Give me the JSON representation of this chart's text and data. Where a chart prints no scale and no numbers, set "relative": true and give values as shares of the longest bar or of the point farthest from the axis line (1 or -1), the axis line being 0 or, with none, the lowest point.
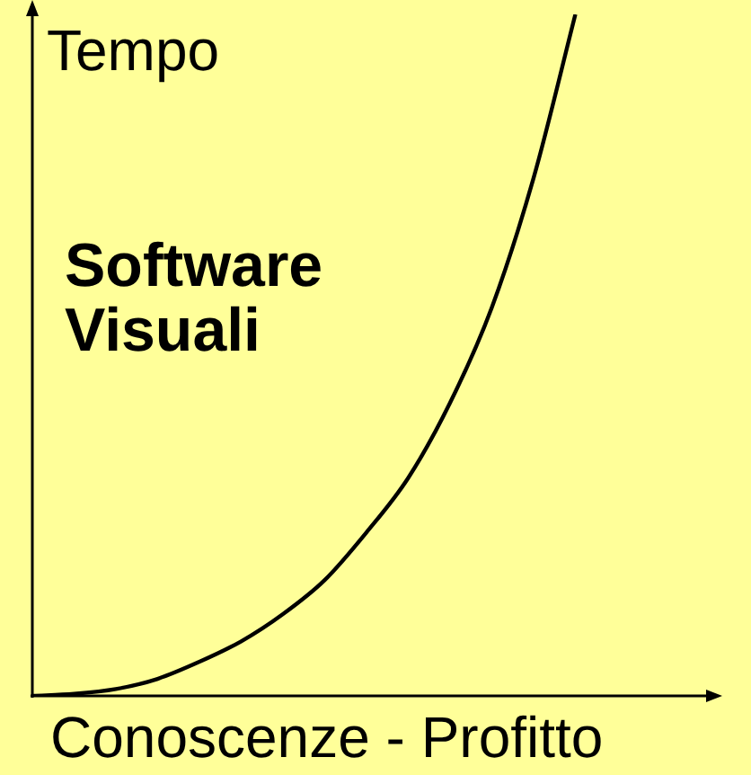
{
  "chart_data": {
    "type": "line",
    "relative": true,
    "xlabel": "Conoscenze - Profitto",
    "ylabel": "Tempo",
    "annotations": [
      "Software Visuali"
    ],
    "categories": [
      null,
      null,
      null,
      null,
      null,
      null,
      null,
      null,
      null,
      null,
      null,
      null,
      null,
      null,
      null,
      null,
      null
    ],
    "series": [
      {
        "color": "#000000",
        "values": [
          0,
          0.003,
          0.01,
          0.025,
          0.05,
          0.08,
          0.12,
          0.17,
          0.24,
          0.32,
          0.43,
          0.57,
          0.76,
          1,
          null,
          null,
          null
        ]
      }
    ],
    "legend": false,
    "marker": "none",
    "line_style": "solid"
  }
}
